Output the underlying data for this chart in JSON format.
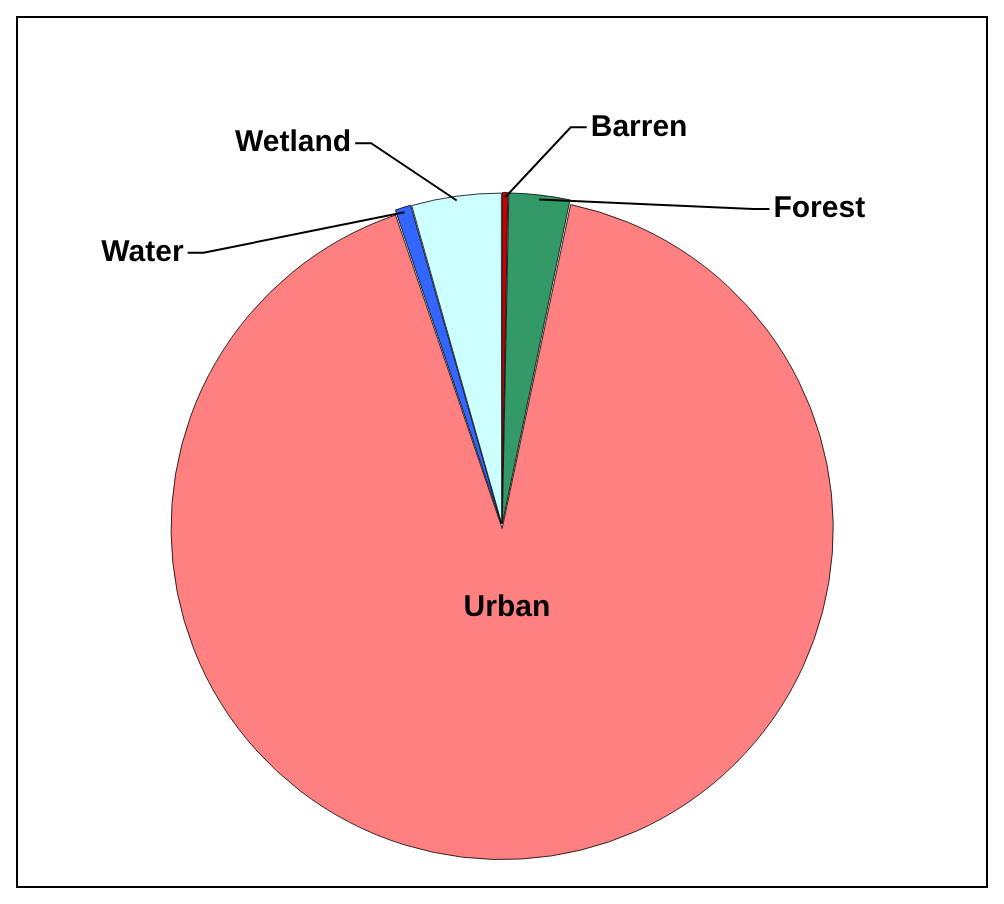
{
  "chart_data": {
    "type": "pie",
    "categories": [
      "Barren",
      "Forest",
      "Urban",
      "Water",
      "Wetland"
    ],
    "values": [
      0.3,
      3.0,
      91.5,
      0.8,
      4.4
    ],
    "colors": [
      "#cc0000",
      "#339966",
      "#ff8080",
      "#3366ff",
      "#ccffff"
    ],
    "legend": false
  }
}
